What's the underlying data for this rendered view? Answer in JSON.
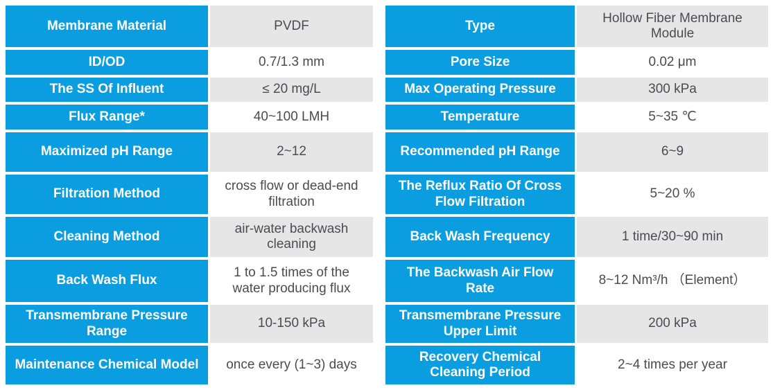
{
  "table": {
    "accent_color": "#0a9ee1",
    "shaded_row_color": "#e6e6e6",
    "value_text_color": "#4b4b50",
    "rows": [
      {
        "left_label": "Membrane Material",
        "left_value": "PVDF",
        "right_label": "Type",
        "right_value": "Hollow Fiber Membrane Module"
      },
      {
        "left_label": "ID/OD",
        "left_value": "0.7/1.3 mm",
        "right_label": "Pore Size",
        "right_value": "0.02 μm"
      },
      {
        "left_label": "The SS Of Influent",
        "left_value": "≤ 20 mg/L",
        "right_label": "Max Operating Pressure",
        "right_value": "300 kPa"
      },
      {
        "left_label": "Flux Range*",
        "left_value": "40~100 LMH",
        "right_label": "Temperature",
        "right_value": "5~35 ℃"
      },
      {
        "left_label": "Maximized pH Range",
        "left_value": "2~12",
        "right_label": "Recommended pH Range",
        "right_value": "6~9"
      },
      {
        "left_label": "Filtration Method",
        "left_value": "cross flow or dead-end filtration",
        "right_label": "The Reflux Ratio Of Cross Flow Filtration",
        "right_value": "5~20 %"
      },
      {
        "left_label": "Cleaning Method",
        "left_value": "air-water backwash cleaning",
        "right_label": "Back Wash Frequency",
        "right_value": "1 time/30~90 min"
      },
      {
        "left_label": "Back Wash Flux",
        "left_value": "1 to 1.5 times of the water producing flux",
        "right_label": "The Backwash Air Flow Rate",
        "right_value": "8~12 Nm³/h （Element）"
      },
      {
        "left_label": "Transmembrane Pressure Range",
        "left_value": "10-150 kPa",
        "right_label": "Transmembrane Pressure Upper Limit",
        "right_value": "200 kPa"
      },
      {
        "left_label": "Maintenance Chemical Model",
        "left_value": "once every (1~3) days",
        "right_label": "Recovery Chemical Cleaning Period",
        "right_value": "2~4 times per year"
      }
    ]
  }
}
